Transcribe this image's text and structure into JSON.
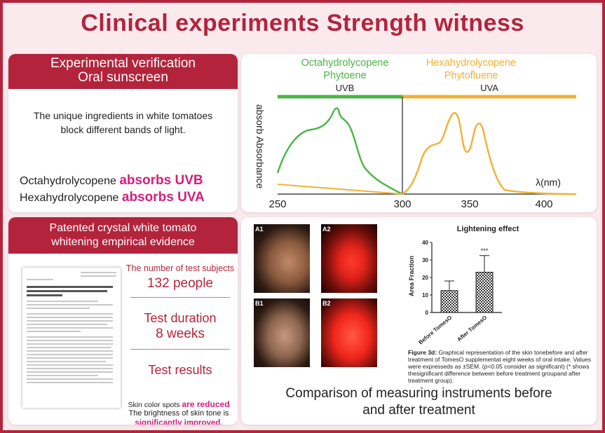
{
  "title": "Clinical experiments  Strength witness",
  "panel1": {
    "heading_line1": "Experimental verification",
    "heading_line2": "Oral sunscreen",
    "desc_line1": "The unique ingredients in white tomatoes",
    "desc_line2": "block different bands of light.",
    "absorb1_name": "Octahydrolycopene",
    "absorb1_effect": "absorbs UVB",
    "absorb2_name": "Hexahydrolycopene",
    "absorb2_effect": "absorbs UVA"
  },
  "spectrum": {
    "green_label_line1": "Octahydrolycopene",
    "green_label_line2": "Phytoene",
    "orange_label_line1": "Hexahydrolycopene",
    "orange_label_line2": "Phytofluene",
    "uvb_label": "UVB",
    "uva_label": "UVA",
    "y_axis_label": "absorb Absorbance",
    "x_unit_label": "λ(nm)",
    "x_ticks": [
      "250",
      "300",
      "350",
      "400"
    ],
    "green_color": "#4bb543",
    "orange_color": "#f2b133"
  },
  "panel3": {
    "heading_line1": "Patented crystal white tomato",
    "heading_line2": "whitening empirical evidence",
    "subjects_label": "The number of test subjects",
    "subjects_value": "132 people",
    "duration_label": "Test duration",
    "duration_value": "8 weeks",
    "results_label": "Test results",
    "result1_prefix": "Skin color spots ",
    "result1_highlight": "are reduced",
    "result2": "The brightness of skin tone is",
    "result3": "significantly improved."
  },
  "panel4": {
    "photo_tags": [
      "A1",
      "A2",
      "B1",
      "B2"
    ],
    "bar_chart": {
      "title": "Lightening effect",
      "ylabel": "Area Fraction",
      "yticks": [
        "0",
        "10",
        "20",
        "30",
        "40"
      ],
      "significance": "***"
    },
    "caption_bold": "Figure 3d:",
    "caption_text": " Graphical representation of the skin tonebefore and after treatment of TomesO supplementat eight weeks of oral intake. Values were expresseds as ±SEM. (p<0.05 consider as significant) (* shows thesignificant difference between before treatment groupand after treatment group).",
    "compare_line1": "Comparison of measuring instruments before",
    "compare_line2": "and after treatment"
  },
  "chart_data": {
    "type": "bar",
    "title": "Lightening effect",
    "categories": [
      "Before TomesO",
      "After TomesO"
    ],
    "values": [
      12.5,
      23
    ],
    "errors": [
      5.5,
      9.5
    ],
    "xlabel": "",
    "ylabel": "Area Fraction",
    "ylim": [
      0,
      40
    ],
    "annotations": [
      "***"
    ]
  }
}
